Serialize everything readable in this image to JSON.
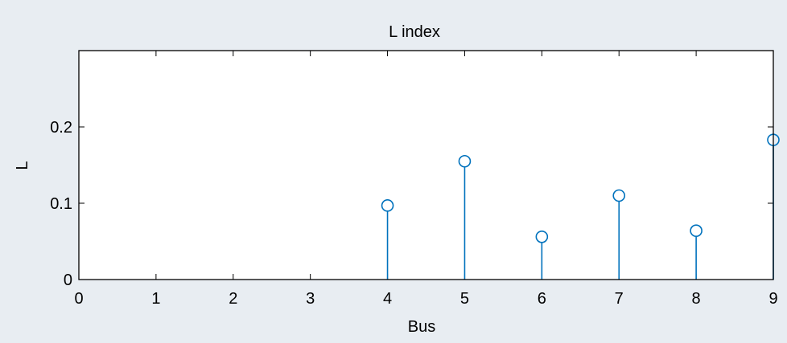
{
  "chart_data": {
    "type": "stem",
    "title": "L index",
    "xlabel": "Bus",
    "ylabel": "L",
    "xlim": [
      0,
      9
    ],
    "ylim": [
      0,
      0.3
    ],
    "xticks": [
      "0",
      "1",
      "2",
      "3",
      "4",
      "5",
      "6",
      "7",
      "8",
      "9"
    ],
    "yticks": [
      "0",
      "0.1",
      "0.2"
    ],
    "x": [
      4,
      5,
      6,
      7,
      8,
      9
    ],
    "values": [
      0.097,
      0.155,
      0.056,
      0.11,
      0.064,
      0.183
    ],
    "grid": false,
    "stem_color": "#0072bd"
  }
}
